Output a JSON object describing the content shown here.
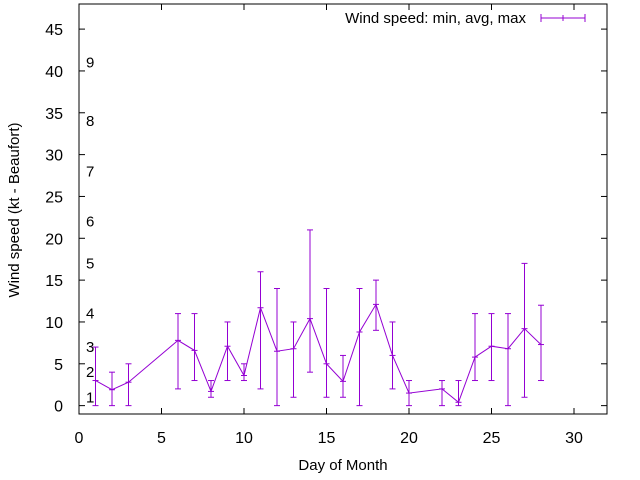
{
  "chart_data": {
    "type": "errorbar-line",
    "title": "",
    "xlabel": "Day of Month",
    "ylabel": "Wind speed (kt - Beaufort)",
    "xlim": [
      0,
      32
    ],
    "ylim": [
      -1,
      48
    ],
    "xticks": [
      0,
      5,
      10,
      15,
      20,
      25,
      30
    ],
    "yticks": [
      0,
      5,
      10,
      15,
      20,
      25,
      30,
      35,
      40,
      45
    ],
    "grid": false,
    "legend": {
      "label": "Wind speed: min, avg, max",
      "position": "top-right"
    },
    "series": [
      {
        "name": "Wind speed: min, avg, max",
        "color": "#9400d3",
        "points": [
          {
            "day": 1,
            "avg": 3.0,
            "min": 0,
            "max": 7
          },
          {
            "day": 2,
            "avg": 1.9,
            "min": 0,
            "max": 4
          },
          {
            "day": 3,
            "avg": 2.8,
            "min": 0,
            "max": 5
          },
          {
            "day": 6,
            "avg": 7.8,
            "min": 2,
            "max": 11
          },
          {
            "day": 7,
            "avg": 6.6,
            "min": 3,
            "max": 11
          },
          {
            "day": 8,
            "avg": 1.7,
            "min": 1,
            "max": 3
          },
          {
            "day": 9,
            "avg": 7.1,
            "min": 3,
            "max": 10
          },
          {
            "day": 10,
            "avg": 3.6,
            "min": 3,
            "max": 5
          },
          {
            "day": 11,
            "avg": 11.7,
            "min": 2,
            "max": 16
          },
          {
            "day": 12,
            "avg": 6.5,
            "min": 0,
            "max": 14
          },
          {
            "day": 13,
            "avg": 6.8,
            "min": 1,
            "max": 10
          },
          {
            "day": 14,
            "avg": 10.4,
            "min": 4,
            "max": 21
          },
          {
            "day": 15,
            "avg": 5.0,
            "min": 1,
            "max": 14
          },
          {
            "day": 16,
            "avg": 2.9,
            "min": 1,
            "max": 6
          },
          {
            "day": 17,
            "avg": 8.8,
            "min": 0,
            "max": 14
          },
          {
            "day": 18,
            "avg": 12.1,
            "min": 9,
            "max": 15
          },
          {
            "day": 19,
            "avg": 6.0,
            "min": 2,
            "max": 10
          },
          {
            "day": 20,
            "avg": 1.5,
            "min": 0,
            "max": 3
          },
          {
            "day": 22,
            "avg": 2.0,
            "min": 0,
            "max": 3
          },
          {
            "day": 23,
            "avg": 0.4,
            "min": 0,
            "max": 3
          },
          {
            "day": 24,
            "avg": 5.8,
            "min": 3,
            "max": 11
          },
          {
            "day": 25,
            "avg": 7.1,
            "min": 3,
            "max": 11
          },
          {
            "day": 26,
            "avg": 6.8,
            "min": 0,
            "max": 11
          },
          {
            "day": 27,
            "avg": 9.2,
            "min": 1,
            "max": 17
          },
          {
            "day": 28,
            "avg": 7.3,
            "min": 3,
            "max": 12
          }
        ]
      }
    ],
    "beaufort_labels": [
      {
        "label": "1",
        "value": 1.0
      },
      {
        "label": "2",
        "value": 4.0
      },
      {
        "label": "3",
        "value": 7.0
      },
      {
        "label": "4",
        "value": 11.0
      },
      {
        "label": "5",
        "value": 17.0
      },
      {
        "label": "6",
        "value": 22.0
      },
      {
        "label": "7",
        "value": 28.0
      },
      {
        "label": "8",
        "value": 34.0
      },
      {
        "label": "9",
        "value": 41.0
      }
    ]
  }
}
